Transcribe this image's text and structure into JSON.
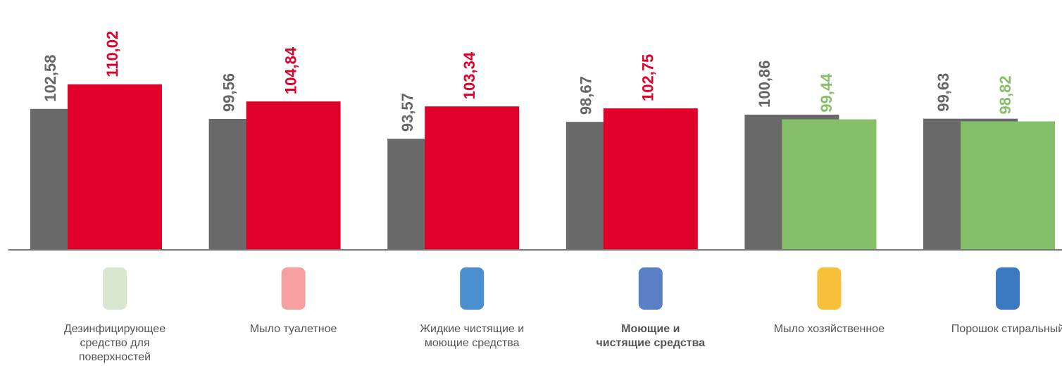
{
  "chart_data": {
    "type": "bar",
    "categories": [
      "Дезинфицирующее\nсредство для\nповерхностей",
      "Мыло туалетное",
      "Жидкие чистящие и\nмоющие средства",
      "Моющие и\nчистящие средства",
      "Мыло хозяйственное",
      "Порошок стиральный"
    ],
    "series": [
      {
        "color": "#696969",
        "values": [
          102.58,
          99.56,
          93.57,
          98.67,
          100.86,
          99.63
        ],
        "value_labels": [
          "102,58",
          "99,56",
          "93,57",
          "98,67",
          "100,86",
          "99,63"
        ]
      },
      {
        "colors": [
          "#e0002a",
          "#e0002a",
          "#e0002a",
          "#e0002a",
          "#86bf69",
          "#86bf69"
        ],
        "values": [
          110.02,
          104.84,
          103.34,
          102.75,
          99.44,
          98.82
        ],
        "value_labels": [
          "110,02",
          "104,84",
          "103,34",
          "102,75",
          "99,44",
          "98,82"
        ]
      }
    ],
    "ylim": [
      60,
      135.5
    ]
  }
}
